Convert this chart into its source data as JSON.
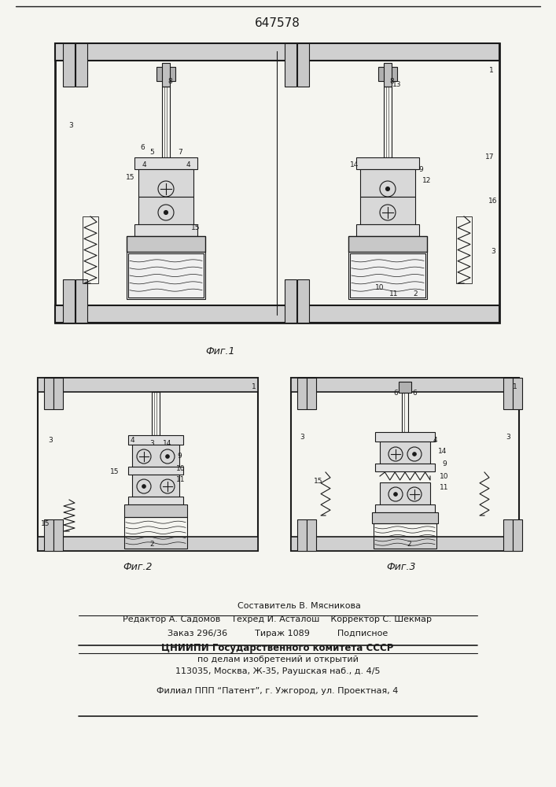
{
  "title_number": "647578",
  "fig1_label": "Фиг.1",
  "fig2_label": "Фиг.2",
  "fig3_label": "Фиг.3",
  "footer_line1": "Составитель В. Мясникова",
  "footer_line2": "Редактор А. Садомов    Техред И. Асталош    Корректор С. Шекмар",
  "footer_line3": "Заказ 296/36          Тираж 1089          Подписное",
  "footer_line4": "ЦНИИПИ Государственного комитета СССР",
  "footer_line5": "по делам изобретений и открытий",
  "footer_line6": "113035, Москва, Ж-35, Раушская наб., д. 4/5",
  "footer_line7": "Филиал ППП “Патент”, г. Ужгород, ул. Проектная, 4",
  "bg_color": "#f5f5f0",
  "line_color": "#1a1a1a",
  "text_color": "#1a1a1a"
}
